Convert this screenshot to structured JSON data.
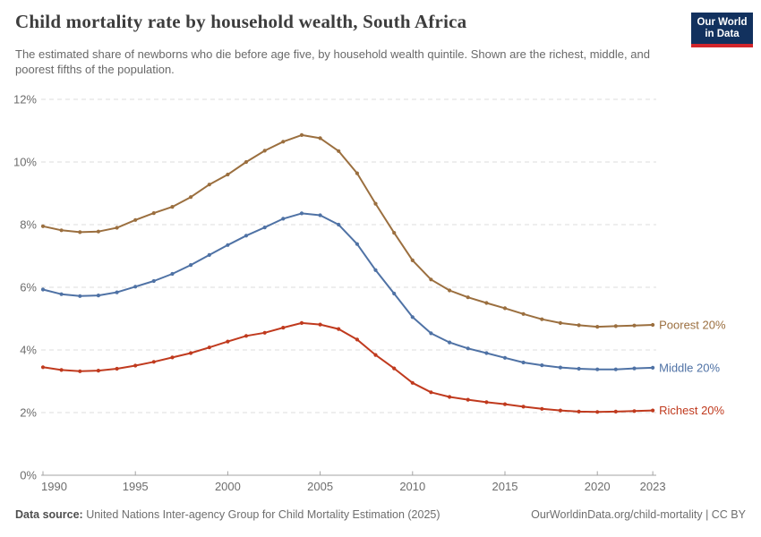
{
  "header": {
    "title": "Child mortality rate by household wealth, South Africa",
    "subtitle": "The estimated share of newborns who die before age five, by household wealth quintile. Shown are the richest, middle, and poorest fifths of the population.",
    "logo_line1": "Our World",
    "logo_line2": "in Data"
  },
  "footer": {
    "source_label": "Data source:",
    "source_text": " United Nations Inter-agency Group for Child Mortality Estimation (2025)",
    "link_text": "OurWorldinData.org/child-mortality | CC BY"
  },
  "colors": {
    "poorest": "#9b6f3f",
    "middle": "#4f72a5",
    "richest": "#c03a1e",
    "grid": "#dedede",
    "axis": "#a3a3a3",
    "tick_text": "#6d6d6d"
  },
  "chart_data": {
    "type": "line",
    "title": "Child mortality rate by household wealth, South Africa",
    "xlabel": "",
    "ylabel": "",
    "ylim": [
      0,
      12
    ],
    "yticks": [
      0,
      2,
      4,
      6,
      8,
      10,
      12
    ],
    "ytick_suffix": "%",
    "xticks": [
      1990,
      1995,
      2000,
      2005,
      2010,
      2015,
      2020,
      2023
    ],
    "grid": "horizontal-dashed",
    "legend_position": "right-inline",
    "x": [
      1990,
      1991,
      1992,
      1993,
      1994,
      1995,
      1996,
      1997,
      1998,
      1999,
      2000,
      2001,
      2002,
      2003,
      2004,
      2005,
      2006,
      2007,
      2008,
      2009,
      2010,
      2011,
      2012,
      2013,
      2014,
      2015,
      2016,
      2017,
      2018,
      2019,
      2020,
      2021,
      2022,
      2023
    ],
    "series": [
      {
        "id": "poorest-20",
        "label": "Poorest 20%",
        "color": "#9b6f3f",
        "values": [
          7.95,
          7.82,
          7.76,
          7.78,
          7.9,
          8.15,
          8.37,
          8.57,
          8.88,
          9.28,
          9.6,
          10.0,
          10.36,
          10.65,
          10.86,
          10.76,
          10.35,
          9.64,
          8.67,
          7.74,
          6.86,
          6.25,
          5.9,
          5.68,
          5.5,
          5.33,
          5.15,
          4.98,
          4.86,
          4.79,
          4.74,
          4.76,
          4.78,
          4.8
        ]
      },
      {
        "id": "middle-20",
        "label": "Middle 20%",
        "color": "#4f72a5",
        "values": [
          5.93,
          5.78,
          5.72,
          5.74,
          5.84,
          6.02,
          6.2,
          6.43,
          6.71,
          7.03,
          7.35,
          7.65,
          7.91,
          8.19,
          8.36,
          8.3,
          8.0,
          7.38,
          6.55,
          5.8,
          5.05,
          4.53,
          4.24,
          4.05,
          3.9,
          3.75,
          3.6,
          3.51,
          3.44,
          3.4,
          3.38,
          3.38,
          3.41,
          3.43
        ]
      },
      {
        "id": "richest-20",
        "label": "Richest 20%",
        "color": "#c03a1e",
        "values": [
          3.45,
          3.36,
          3.32,
          3.34,
          3.4,
          3.5,
          3.62,
          3.76,
          3.9,
          4.08,
          4.27,
          4.45,
          4.55,
          4.71,
          4.86,
          4.81,
          4.67,
          4.33,
          3.84,
          3.41,
          2.95,
          2.65,
          2.5,
          2.41,
          2.33,
          2.27,
          2.19,
          2.12,
          2.07,
          2.03,
          2.02,
          2.03,
          2.05,
          2.07
        ]
      }
    ]
  }
}
